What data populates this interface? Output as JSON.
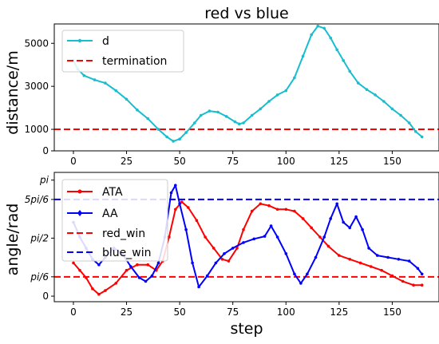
{
  "chart_data": [
    {
      "type": "line",
      "title": "red vs blue",
      "xlabel": "",
      "ylabel": "distance/m",
      "xlim": [
        -9,
        172
      ],
      "ylim": [
        0,
        5900
      ],
      "xticks": [
        0,
        25,
        50,
        75,
        100,
        125,
        150
      ],
      "xtick_labels": [
        "0",
        "25",
        "50",
        "75",
        "100",
        "125",
        "150"
      ],
      "yticks": [
        0,
        1000,
        3000,
        5000
      ],
      "ytick_labels": [
        "0",
        "1000",
        "3000",
        "5000"
      ],
      "legend_position": "top-left",
      "series": [
        {
          "name": "d",
          "color": "#17becf",
          "style": "solid-marker",
          "points": [
            [
              0,
              4200
            ],
            [
              2,
              3800
            ],
            [
              5,
              3500
            ],
            [
              10,
              3300
            ],
            [
              15,
              3150
            ],
            [
              20,
              2800
            ],
            [
              25,
              2400
            ],
            [
              30,
              1900
            ],
            [
              35,
              1500
            ],
            [
              40,
              1000
            ],
            [
              44,
              650
            ],
            [
              47,
              450
            ],
            [
              50,
              550
            ],
            [
              53,
              850
            ],
            [
              57,
              1300
            ],
            [
              60,
              1650
            ],
            [
              64,
              1850
            ],
            [
              68,
              1800
            ],
            [
              72,
              1600
            ],
            [
              76,
              1350
            ],
            [
              78,
              1250
            ],
            [
              80,
              1300
            ],
            [
              84,
              1650
            ],
            [
              88,
              1950
            ],
            [
              92,
              2300
            ],
            [
              96,
              2600
            ],
            [
              100,
              2800
            ],
            [
              104,
              3400
            ],
            [
              108,
              4400
            ],
            [
              112,
              5400
            ],
            [
              115,
              5800
            ],
            [
              118,
              5700
            ],
            [
              121,
              5250
            ],
            [
              124,
              4700
            ],
            [
              127,
              4200
            ],
            [
              130,
              3700
            ],
            [
              134,
              3150
            ],
            [
              138,
              2850
            ],
            [
              142,
              2600
            ],
            [
              146,
              2300
            ],
            [
              150,
              1950
            ],
            [
              154,
              1650
            ],
            [
              158,
              1300
            ],
            [
              161,
              900
            ],
            [
              164,
              650
            ]
          ]
        },
        {
          "name": "termination",
          "color": "#ff0000",
          "style": "dashed",
          "y": 1000
        }
      ]
    },
    {
      "type": "line",
      "title": "",
      "xlabel": "step",
      "ylabel": "angle/rad",
      "xlim": [
        -9,
        172
      ],
      "ylim": [
        -0.15,
        3.35
      ],
      "xticks": [
        0,
        25,
        50,
        75,
        100,
        125,
        150
      ],
      "xtick_labels": [
        "0",
        "25",
        "50",
        "75",
        "100",
        "125",
        "150"
      ],
      "yticks": [
        0,
        0.5236,
        1.5708,
        2.618,
        3.1416
      ],
      "ytick_labels": [
        "0",
        "pi/6",
        "pi/2",
        "5pi/6",
        "pi"
      ],
      "legend_position": "top-left",
      "series": [
        {
          "name": "ATA",
          "color": "#ff0000",
          "style": "solid-marker",
          "points": [
            [
              0,
              0.9
            ],
            [
              3,
              0.7
            ],
            [
              6,
              0.5
            ],
            [
              9,
              0.2
            ],
            [
              12,
              0.05
            ],
            [
              15,
              0.15
            ],
            [
              20,
              0.35
            ],
            [
              25,
              0.7
            ],
            [
              30,
              0.85
            ],
            [
              35,
              0.85
            ],
            [
              39,
              0.7
            ],
            [
              42,
              0.95
            ],
            [
              45,
              1.6
            ],
            [
              48,
              2.35
            ],
            [
              51,
              2.55
            ],
            [
              54,
              2.4
            ],
            [
              58,
              2.05
            ],
            [
              62,
              1.6
            ],
            [
              66,
              1.3
            ],
            [
              70,
              1.0
            ],
            [
              73,
              0.95
            ],
            [
              77,
              1.3
            ],
            [
              80,
              1.8
            ],
            [
              84,
              2.3
            ],
            [
              88,
              2.5
            ],
            [
              92,
              2.45
            ],
            [
              96,
              2.35
            ],
            [
              100,
              2.35
            ],
            [
              104,
              2.3
            ],
            [
              108,
              2.1
            ],
            [
              112,
              1.85
            ],
            [
              116,
              1.6
            ],
            [
              120,
              1.35
            ],
            [
              125,
              1.1
            ],
            [
              130,
              1.0
            ],
            [
              135,
              0.9
            ],
            [
              140,
              0.8
            ],
            [
              145,
              0.7
            ],
            [
              150,
              0.55
            ],
            [
              155,
              0.4
            ],
            [
              160,
              0.3
            ],
            [
              164,
              0.3
            ]
          ]
        },
        {
          "name": "AA",
          "color": "#0000ff",
          "style": "solid-marker",
          "points": [
            [
              0,
              2.0
            ],
            [
              3,
              1.6
            ],
            [
              6,
              1.3
            ],
            [
              9,
              1.0
            ],
            [
              12,
              0.85
            ],
            [
              15,
              1.05
            ],
            [
              19,
              1.3
            ],
            [
              23,
              1.15
            ],
            [
              27,
              0.8
            ],
            [
              31,
              0.5
            ],
            [
              34,
              0.4
            ],
            [
              37,
              0.55
            ],
            [
              40,
              0.9
            ],
            [
              43,
              1.6
            ],
            [
              46,
              2.8
            ],
            [
              48,
              3.0
            ],
            [
              50,
              2.5
            ],
            [
              53,
              1.8
            ],
            [
              56,
              0.9
            ],
            [
              59,
              0.25
            ],
            [
              63,
              0.55
            ],
            [
              67,
              0.9
            ],
            [
              71,
              1.15
            ],
            [
              75,
              1.3
            ],
            [
              80,
              1.45
            ],
            [
              85,
              1.55
            ],
            [
              90,
              1.62
            ],
            [
              93,
              1.9
            ],
            [
              96,
              1.6
            ],
            [
              100,
              1.15
            ],
            [
              104,
              0.6
            ],
            [
              107,
              0.35
            ],
            [
              110,
              0.6
            ],
            [
              114,
              1.05
            ],
            [
              118,
              1.6
            ],
            [
              121,
              2.1
            ],
            [
              124,
              2.5
            ],
            [
              127,
              2.0
            ],
            [
              130,
              1.85
            ],
            [
              133,
              2.15
            ],
            [
              136,
              1.8
            ],
            [
              139,
              1.3
            ],
            [
              143,
              1.1
            ],
            [
              148,
              1.05
            ],
            [
              153,
              1.0
            ],
            [
              158,
              0.95
            ],
            [
              162,
              0.75
            ],
            [
              164,
              0.6
            ]
          ]
        },
        {
          "name": "red_win",
          "color": "#ff0000",
          "style": "dashed",
          "y": 0.5236
        },
        {
          "name": "blue_win",
          "color": "#0000ff",
          "style": "dashed",
          "y": 2.618
        }
      ]
    }
  ]
}
